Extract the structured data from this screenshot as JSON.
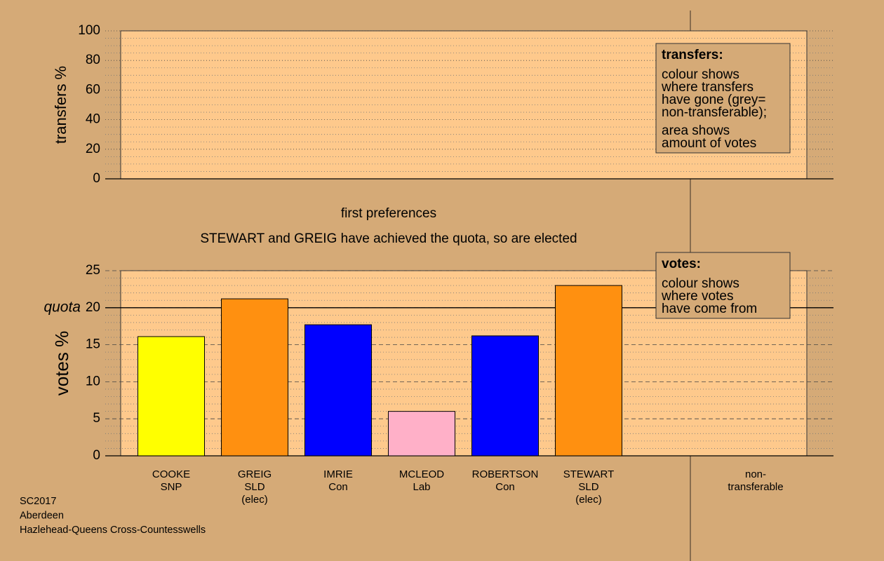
{
  "chart_data": [
    {
      "type": "empty",
      "ylabel": "transfers %",
      "ylim": [
        0,
        100
      ],
      "yticks": [
        0,
        20,
        40,
        60,
        80,
        100
      ],
      "legend": {
        "title": "transfers:",
        "paragraphs": [
          [
            "colour shows",
            "where transfers",
            "have gone (grey=",
            "non-transferable);"
          ],
          [
            "area shows",
            "amount of votes"
          ]
        ]
      }
    },
    {
      "type": "bar",
      "stage": "first preferences",
      "subtitle": "STEWART and GREIG have achieved the quota, so are elected",
      "ylabel": "votes %",
      "ylim": [
        0,
        25
      ],
      "yticks": [
        0,
        5,
        10,
        15,
        20,
        25
      ],
      "quota": {
        "value": 20,
        "label": "quota"
      },
      "categories": [
        [
          "COOKE",
          "SNP"
        ],
        [
          "GREIG",
          "SLD",
          "(elec)"
        ],
        [
          "IMRIE",
          "Con"
        ],
        [
          "MCLEOD",
          "Lab"
        ],
        [
          "ROBERTSON",
          "Con"
        ],
        [
          "STEWART",
          "SLD",
          "(elec)"
        ]
      ],
      "values": [
        16.1,
        21.2,
        17.7,
        6.0,
        16.2,
        23.0
      ],
      "colors": [
        "#ffff00",
        "#ff9010",
        "#0000ff",
        "#ffb0c8",
        "#0000ff",
        "#ff9010"
      ],
      "nontransferable_label": [
        "non-",
        "transferable"
      ],
      "legend": {
        "title": "votes:",
        "paragraphs": [
          [
            "colour shows",
            "where votes",
            "have come from"
          ]
        ]
      }
    }
  ],
  "footer": [
    "SC2017",
    "Aberdeen",
    "Hazlehead-Queens Cross-Countesswells"
  ]
}
